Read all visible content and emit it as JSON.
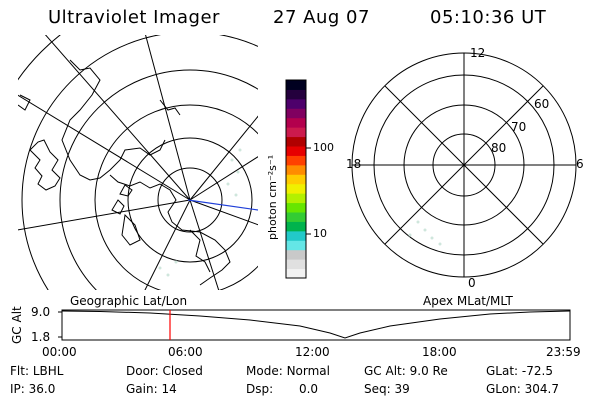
{
  "header": {
    "instrument": "Ultraviolet Imager",
    "date": "27 Aug 07",
    "time": "05:10:36 UT"
  },
  "colorbar": {
    "unit": "photon cm⁻²s⁻¹",
    "ticks": [
      "100",
      "10"
    ],
    "colors": [
      "#f2f2f2",
      "#e0e0e0",
      "#c9c9c9",
      "#64e6e6",
      "#22c9c9",
      "#00b34d",
      "#33cc33",
      "#66e600",
      "#b3f000",
      "#f0f000",
      "#ffcc00",
      "#ff8c00",
      "#ff4000",
      "#e60000",
      "#b00000",
      "#cc1a4d",
      "#b3004d",
      "#800060",
      "#4d006b",
      "#24003d",
      "#000020"
    ]
  },
  "maps": {
    "left_label": "Geographic Lat/Lon",
    "right_label": "Apex MLat/MLT",
    "mlt_labels": {
      "top": "12",
      "left": "18",
      "right": "6",
      "bottom": "0"
    },
    "mlat_labels": [
      "60",
      "70",
      "80"
    ]
  },
  "altitude_plot": {
    "ylabel": "GC Alt",
    "yticks": [
      "9.0",
      "1.8"
    ],
    "xticks": [
      "00:00",
      "06:00",
      "12:00",
      "18:00",
      "23:59"
    ],
    "marker_time": "05:10:36",
    "marker_color": "#ff0000"
  },
  "status": {
    "row1": {
      "flt_label": "Flt:",
      "flt_value": "LBHL",
      "door_label": "Door:",
      "door_value": "Closed",
      "mode_label": "Mode:",
      "mode_value": "Normal",
      "gcalt_label": "GC Alt:",
      "gcalt_value": "9.0 Re",
      "glat_label": "GLat:",
      "glat_value": "-72.5"
    },
    "row2": {
      "ip_label": "IP:",
      "ip_value": "36.0",
      "gain_label": "Gain:",
      "gain_value": "14",
      "dsp_label": "Dsp:",
      "dsp_value": "0.0",
      "seq_label": "Seq:",
      "seq_value": "39",
      "glon_label": "GLon:",
      "glon_value": "304.7"
    }
  }
}
